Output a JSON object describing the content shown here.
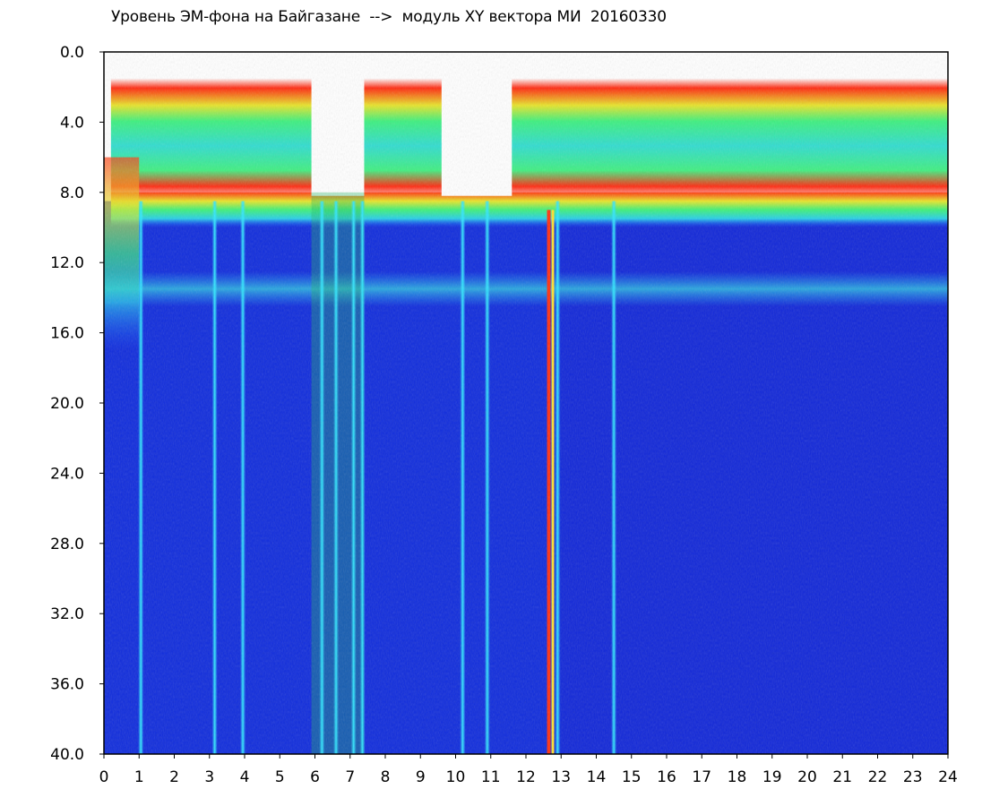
{
  "chart_data": {
    "type": "heatmap",
    "title": "Уровень ЭМ-фона на Байгазане  -->  модуль XY вектора МИ  20160330",
    "xlabel": "",
    "ylabel": "",
    "x_range": [
      0,
      24
    ],
    "y_range": [
      0.0,
      40.0
    ],
    "y_inverted": true,
    "x_ticks": [
      "0",
      "1",
      "2",
      "3",
      "4",
      "5",
      "6",
      "7",
      "8",
      "9",
      "10",
      "11",
      "12",
      "13",
      "14",
      "15",
      "16",
      "17",
      "18",
      "19",
      "20",
      "21",
      "22",
      "23",
      "24"
    ],
    "y_ticks": [
      "0.0",
      "4.0",
      "8.0",
      "12.0",
      "16.0",
      "20.0",
      "24.0",
      "28.0",
      "32.0",
      "36.0",
      "40.0"
    ],
    "colormap": [
      "#ffffff",
      "#0a1fd0",
      "#1a6bff",
      "#27d4e8",
      "#37f08a",
      "#e6e62a",
      "#ff2010"
    ],
    "background_level": "#1127d8",
    "bands": [
      {
        "name": "high-level band",
        "y_from": 1.5,
        "y_to": 8.5,
        "color_profile": "red-edge, green/cyan core"
      },
      {
        "name": "transition band",
        "y_from": 8.0,
        "y_to": 10.0,
        "color_profile": "yellow/green/cyan"
      },
      {
        "name": "secondary band",
        "y_from": 12.5,
        "y_to": 14.5,
        "color_profile": "cyan on blue"
      }
    ],
    "gaps_white_top": [
      {
        "x_from": 5.9,
        "x_to": 7.4
      },
      {
        "x_from": 9.6,
        "x_to": 11.6
      }
    ],
    "bright_vertical_streaks_x": [
      1.05,
      3.15,
      3.95,
      6.2,
      6.6,
      7.1,
      7.35,
      10.2,
      10.9,
      12.65,
      12.9,
      14.5
    ]
  }
}
